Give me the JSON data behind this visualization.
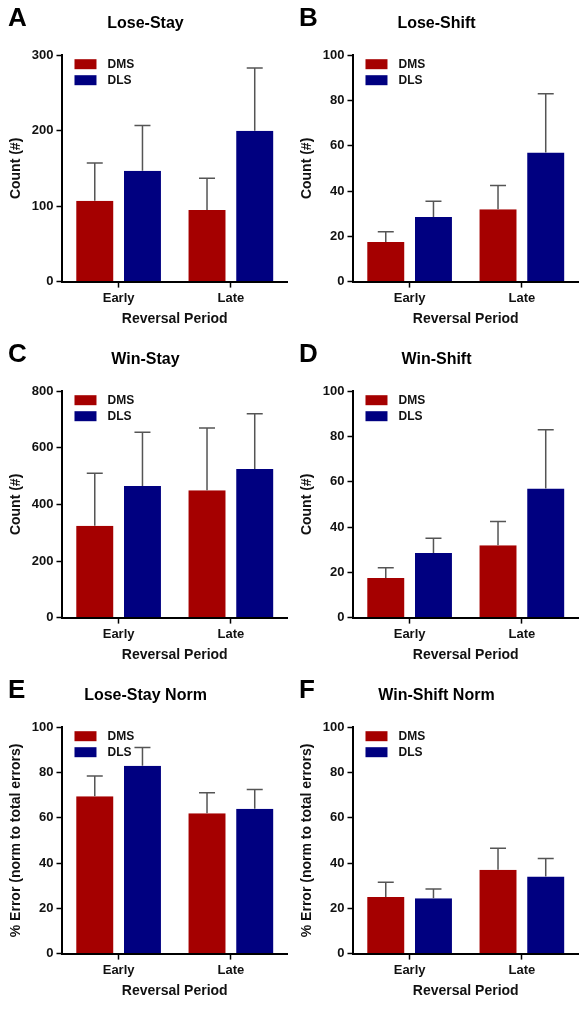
{
  "chart_data": [
    {
      "type": "bar",
      "title": "Lose-Stay",
      "annotations": [
        "A"
      ],
      "xlabel": "Reversal Period",
      "ylabel": "Count (#)",
      "categories": [
        "Early",
        "Late"
      ],
      "ylim": [
        0,
        300
      ],
      "yticks": [
        0,
        100,
        200,
        300
      ],
      "grid": false,
      "legend": "top left",
      "series": [
        {
          "name": "DMS",
          "color": "#a50000",
          "values": [
            107,
            95
          ],
          "errors": [
            [
              107,
              157
            ],
            [
              95,
              137
            ]
          ]
        },
        {
          "name": "DLS",
          "color": "#000080",
          "values": [
            147,
            200
          ],
          "errors": [
            [
              147,
              207
            ],
            [
              200,
              283
            ]
          ]
        }
      ]
    },
    {
      "type": "bar",
      "title": "Lose-Shift",
      "annotations": [
        "B"
      ],
      "xlabel": "Reversal Period",
      "ylabel": "Count (#)",
      "categories": [
        "Early",
        "Late"
      ],
      "ylim": [
        0,
        100
      ],
      "yticks": [
        0,
        20,
        40,
        60,
        80,
        100
      ],
      "grid": false,
      "legend": "top left",
      "series": [
        {
          "name": "DMS",
          "color": "#a50000",
          "values": [
            17.5,
            32
          ],
          "errors": [
            [
              17.5,
              22
            ],
            [
              32,
              42.5
            ]
          ]
        },
        {
          "name": "DLS",
          "color": "#000080",
          "values": [
            28.5,
            57
          ],
          "errors": [
            [
              28.5,
              35.5
            ],
            [
              57,
              83
            ]
          ]
        }
      ]
    },
    {
      "type": "bar",
      "title": "Win-Stay",
      "annotations": [
        "C"
      ],
      "xlabel": "Reversal Period",
      "ylabel": "Count (#)",
      "categories": [
        "Early",
        "Late"
      ],
      "ylim": [
        0,
        800
      ],
      "yticks": [
        0,
        200,
        400,
        600,
        800
      ],
      "grid": false,
      "legend": "top left",
      "series": [
        {
          "name": "DMS",
          "color": "#a50000",
          "values": [
            325,
            450
          ],
          "errors": [
            [
              325,
              510
            ],
            [
              450,
              670
            ]
          ]
        },
        {
          "name": "DLS",
          "color": "#000080",
          "values": [
            465,
            525
          ],
          "errors": [
            [
              465,
              655
            ],
            [
              525,
              720
            ]
          ]
        }
      ]
    },
    {
      "type": "bar",
      "title": "Win-Shift",
      "annotations": [
        "D"
      ],
      "xlabel": "Reversal Period",
      "ylabel": "Count (#)",
      "categories": [
        "Early",
        "Late"
      ],
      "ylim": [
        0,
        100
      ],
      "yticks": [
        0,
        20,
        40,
        60,
        80,
        100
      ],
      "grid": false,
      "legend": "top left",
      "series": [
        {
          "name": "DMS",
          "color": "#a50000",
          "values": [
            17.5,
            32
          ],
          "errors": [
            [
              17.5,
              22
            ],
            [
              32,
              42.5
            ]
          ]
        },
        {
          "name": "DLS",
          "color": "#000080",
          "values": [
            28.5,
            57
          ],
          "errors": [
            [
              28.5,
              35
            ],
            [
              57,
              83
            ]
          ]
        }
      ]
    },
    {
      "type": "bar",
      "title": "Lose-Stay Norm",
      "annotations": [
        "E"
      ],
      "xlabel": "Reversal Period",
      "ylabel": "% Error (norm to total errors)",
      "categories": [
        "Early",
        "Late"
      ],
      "ylim": [
        0,
        100
      ],
      "yticks": [
        0,
        20,
        40,
        60,
        80,
        100
      ],
      "grid": false,
      "legend": "top left",
      "series": [
        {
          "name": "DMS",
          "color": "#a50000",
          "values": [
            69.5,
            62
          ],
          "errors": [
            [
              69.5,
              78.5
            ],
            [
              62,
              71
            ]
          ]
        },
        {
          "name": "DLS",
          "color": "#000080",
          "values": [
            83,
            64
          ],
          "errors": [
            [
              83,
              91
            ],
            [
              64,
              72.5
            ]
          ]
        }
      ]
    },
    {
      "type": "bar",
      "title": "Win-Shift Norm",
      "annotations": [
        "F"
      ],
      "xlabel": "Reversal Period",
      "ylabel": "% Error (norm to total errors)",
      "categories": [
        "Early",
        "Late"
      ],
      "ylim": [
        0,
        100
      ],
      "yticks": [
        0,
        20,
        40,
        60,
        80,
        100
      ],
      "grid": false,
      "legend": "top left",
      "series": [
        {
          "name": "DMS",
          "color": "#a50000",
          "values": [
            25,
            37
          ],
          "errors": [
            [
              25,
              31.5
            ],
            [
              37,
              46.5
            ]
          ]
        },
        {
          "name": "DLS",
          "color": "#000080",
          "values": [
            24.5,
            34
          ],
          "errors": [
            [
              24.5,
              28.5
            ],
            [
              34,
              42
            ]
          ]
        }
      ]
    }
  ]
}
